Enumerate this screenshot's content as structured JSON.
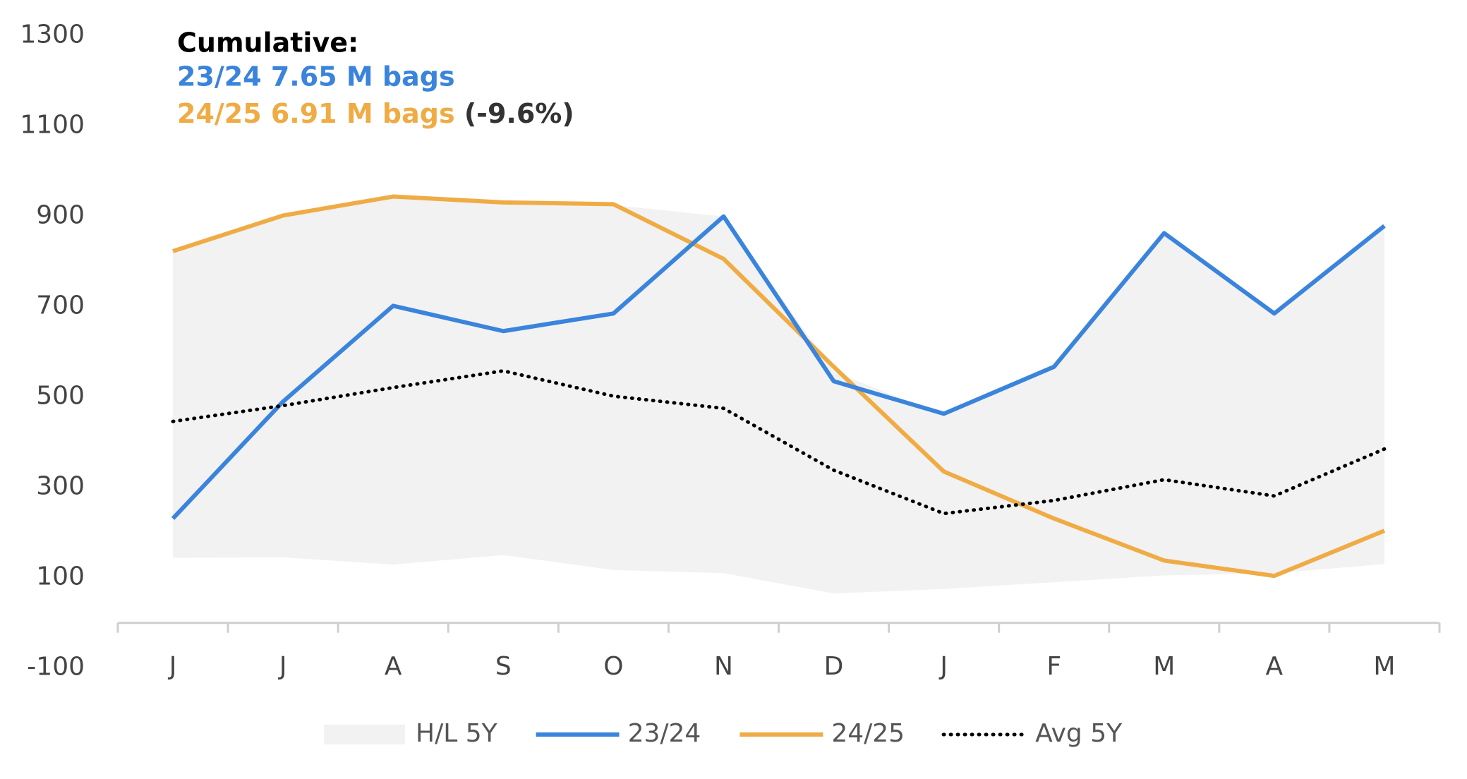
{
  "chart_data": {
    "type": "line",
    "annotations": [
      {
        "text": "Cumulative:",
        "color": "#000000"
      },
      {
        "text": "23/24 7.65 M bags",
        "color": "#3a84dc"
      },
      {
        "text": "24/25 6.91 M bags",
        "color": "#efac45"
      },
      {
        "text": "(-9.6%)",
        "color": "#333333"
      }
    ],
    "categories": [
      "J",
      "J",
      "A",
      "S",
      "O",
      "N",
      "D",
      "J",
      "F",
      "M",
      "A",
      "M"
    ],
    "series": [
      {
        "name": "H/L 5Y",
        "type": "band",
        "color": "#f2f2f2",
        "high": [
          820,
          900,
          945,
          930,
          925,
          900,
          556,
          460,
          565,
          860,
          685,
          880
        ],
        "low": [
          144,
          145,
          129,
          150,
          117,
          110,
          65,
          75,
          90,
          105,
          110,
          130
        ]
      },
      {
        "name": "23/24",
        "color": "#3a84dc",
        "style": "solid",
        "values": [
          231,
          490,
          702,
          646,
          685,
          900,
          535,
          463,
          567,
          863,
          685,
          879
        ]
      },
      {
        "name": "24/25",
        "color": "#efac45",
        "style": "solid",
        "values": [
          823,
          902,
          944,
          931,
          927,
          806,
          567,
          335,
          231,
          138,
          104,
          204
        ]
      },
      {
        "name": "Avg 5Y",
        "color": "#000000",
        "style": "dotted",
        "values": [
          446,
          481,
          521,
          558,
          502,
          475,
          338,
          242,
          271,
          317,
          281,
          385
        ]
      }
    ],
    "ylim": [
      -100,
      1300
    ],
    "yticks": [
      -100,
      100,
      300,
      500,
      700,
      900,
      1100,
      1300
    ],
    "legend": "bottom"
  }
}
